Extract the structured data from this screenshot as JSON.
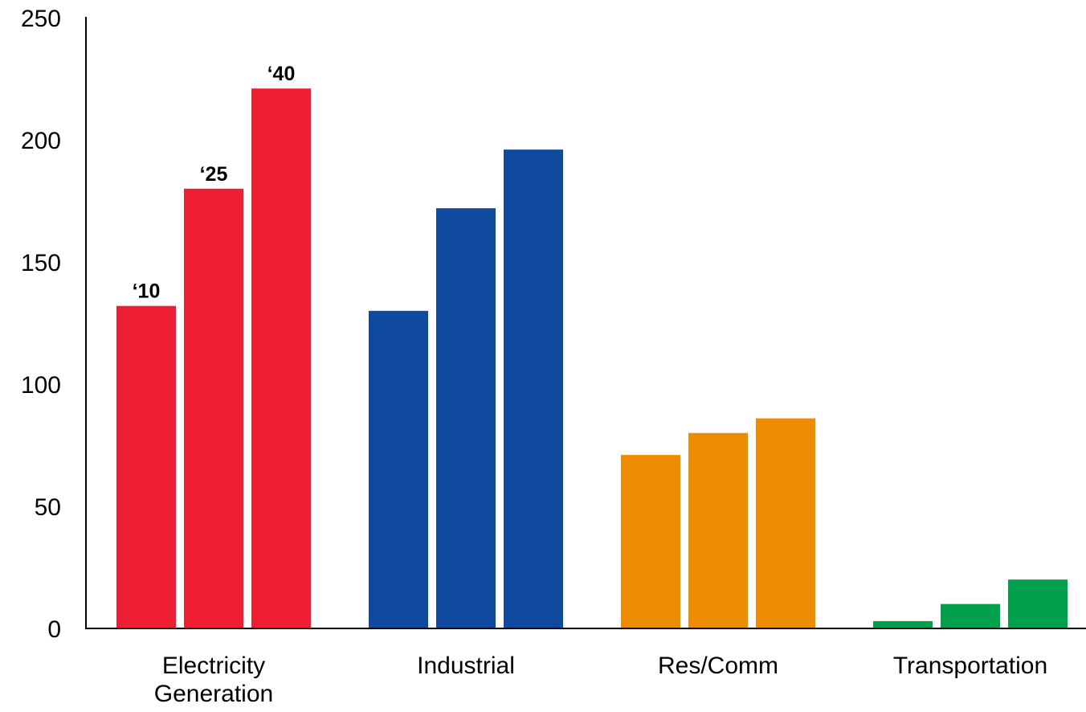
{
  "chart_data": {
    "type": "bar",
    "title": "",
    "xlabel": "",
    "ylabel": "",
    "ylim": [
      0,
      250
    ],
    "yticks": [
      0,
      50,
      100,
      150,
      200,
      250
    ],
    "grid": false,
    "categories": [
      [
        "Electricity",
        "Generation"
      ],
      [
        "Industrial"
      ],
      [
        "Res/Comm"
      ],
      [
        "Transportation"
      ]
    ],
    "years": [
      "‘10",
      "‘25",
      "‘40"
    ],
    "year_labels_on_category": 0,
    "colors": [
      "#ee1f33",
      "#0f4a9e",
      "#ee8c00",
      "#00a04c"
    ],
    "values": [
      [
        132,
        180,
        221
      ],
      [
        130,
        172,
        196
      ],
      [
        71,
        80,
        86
      ],
      [
        3,
        10,
        20
      ]
    ]
  }
}
